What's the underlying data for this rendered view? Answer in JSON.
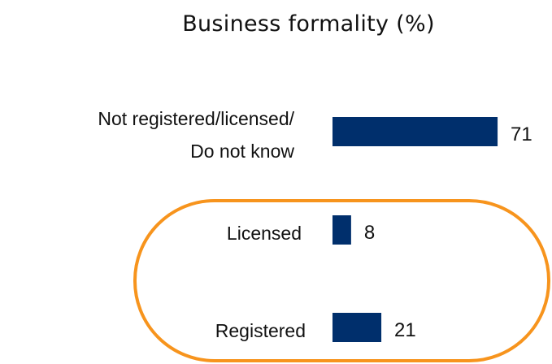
{
  "chart_data": {
    "type": "bar",
    "orientation": "horizontal",
    "title": "Business formality (%)",
    "categories": [
      "Not registered/licensed/\nDo not know",
      "Licensed",
      "Registered"
    ],
    "values": [
      71,
      8,
      21
    ],
    "color": "#002f6c"
  }
}
